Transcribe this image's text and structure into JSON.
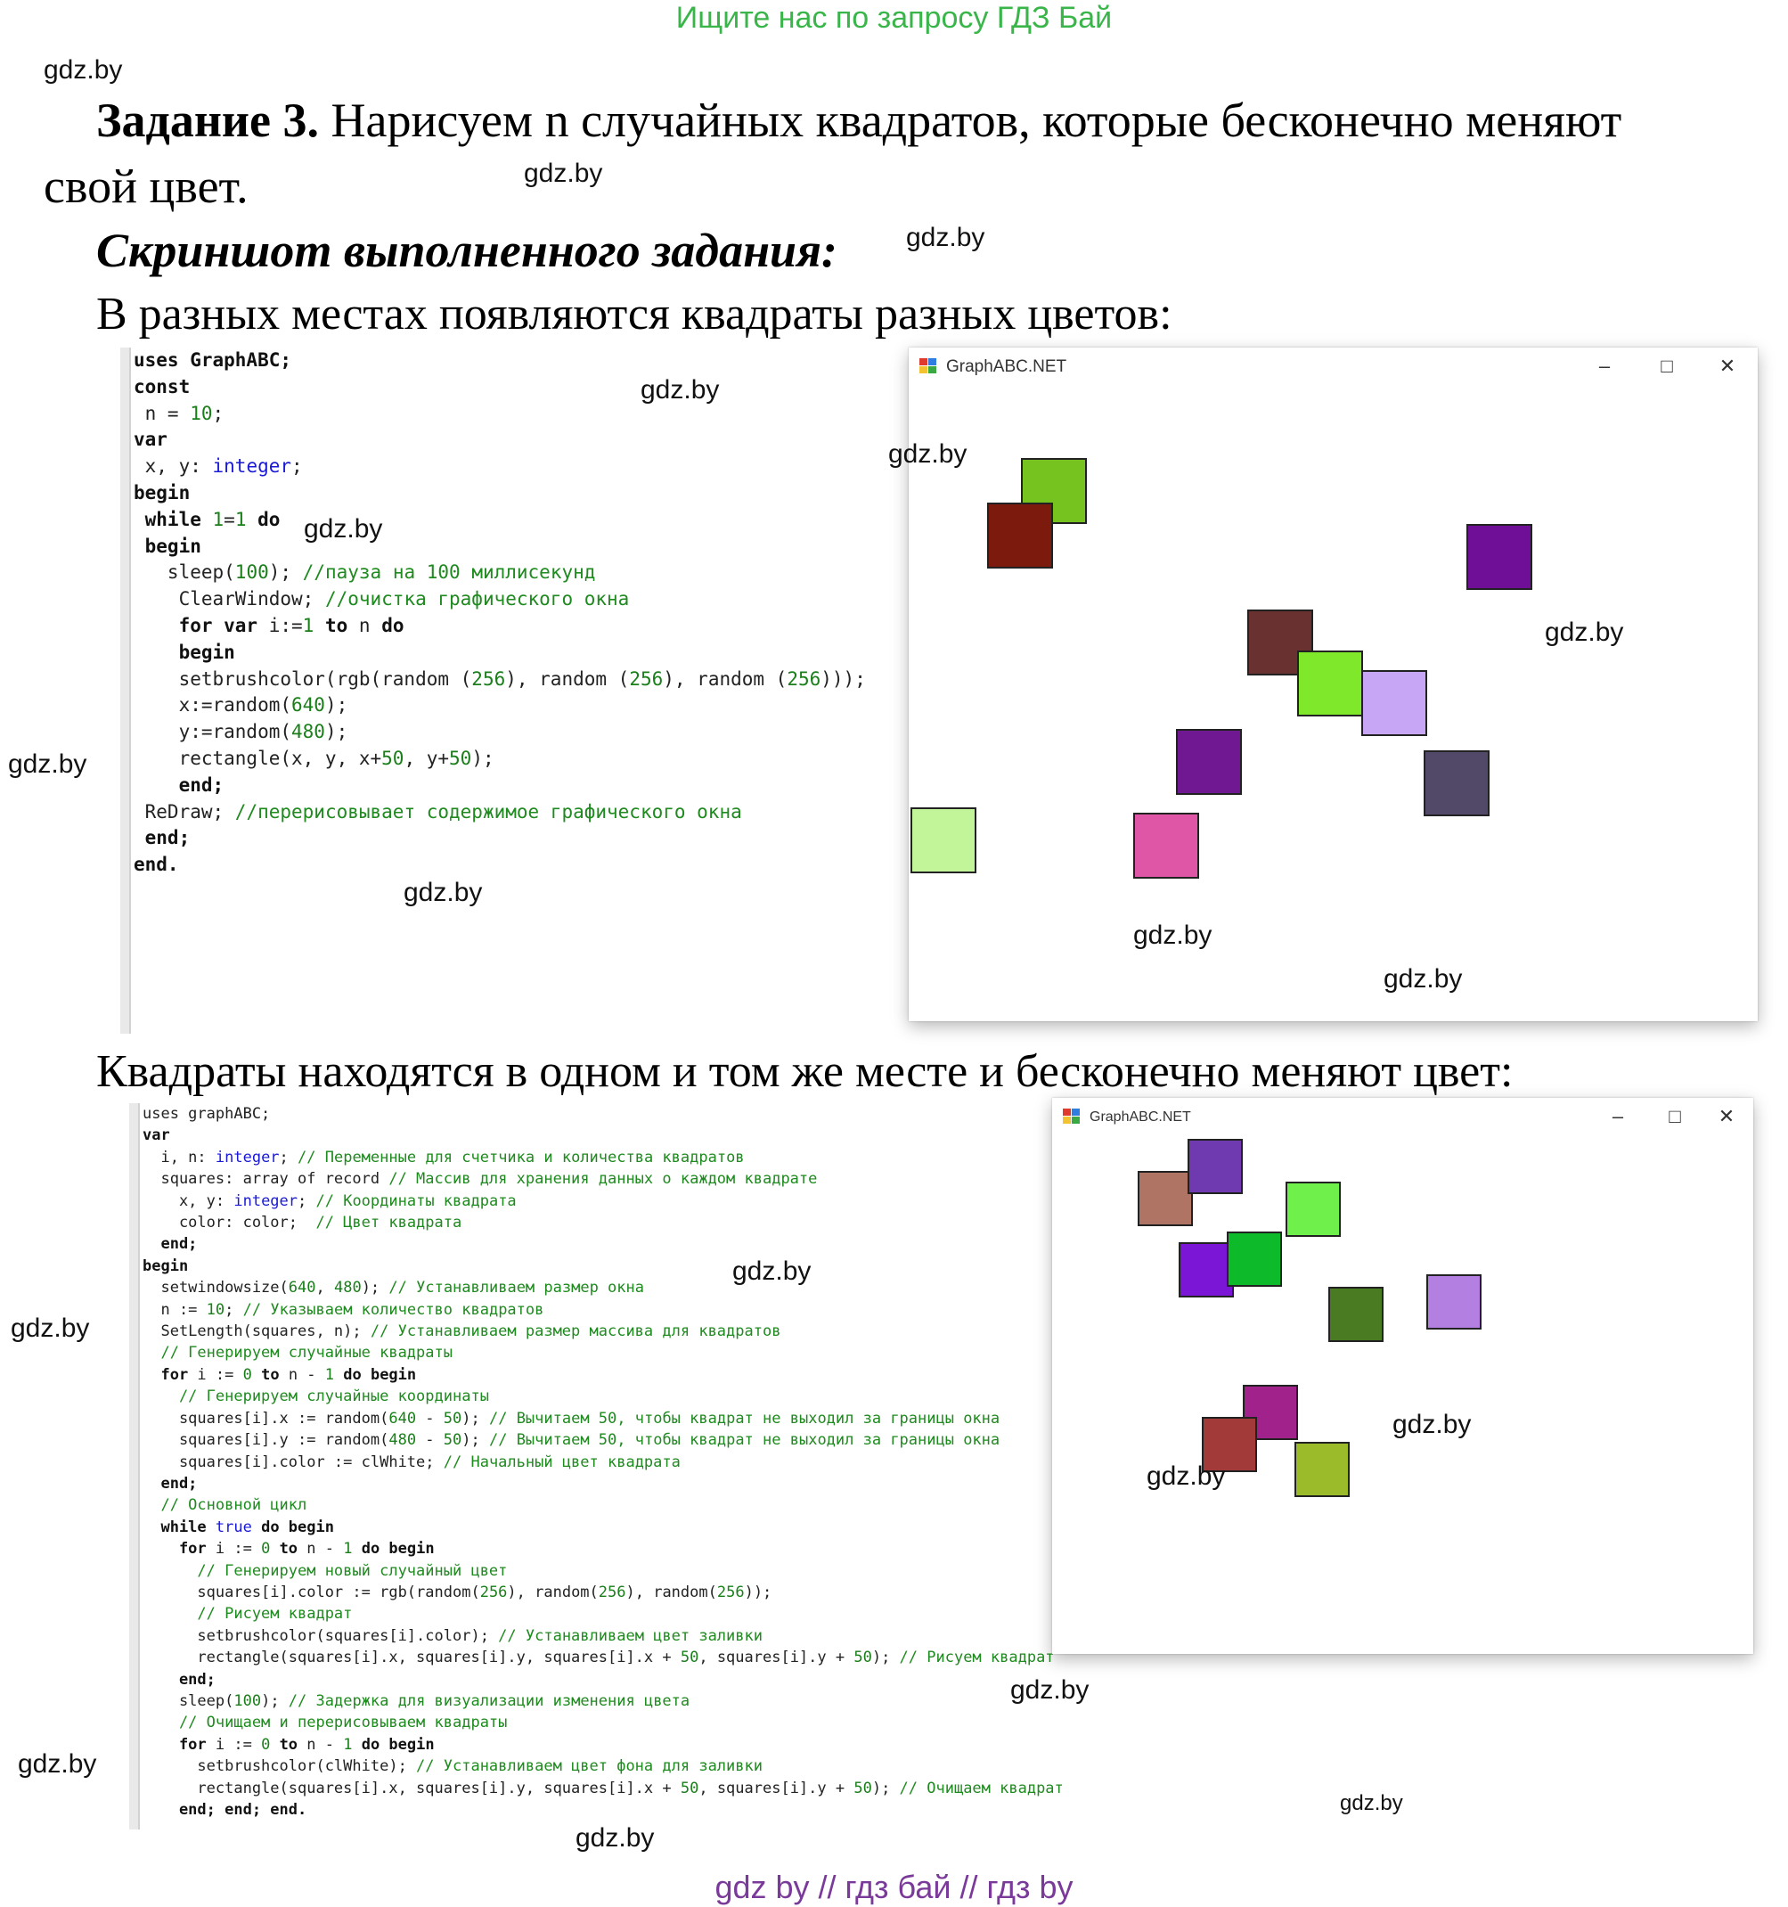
{
  "header": {
    "promo": "Ищите нас по запросу ГДЗ Бай",
    "promo_color": "#39b54a"
  },
  "watermark": "gdz.by",
  "task": {
    "label": "Задание 3.",
    "text_line1": " Нарисуем n случайных квадратов, которые бесконечно меняют",
    "text_line2": "свой цвет."
  },
  "screenshot_heading": "Скриншот выполненного задания:",
  "section1": {
    "caption": "В разных местах появляются квадраты разных цветов:",
    "code": [
      [
        [
          "uses GraphABC;",
          "kw"
        ]
      ],
      [
        [
          "const",
          "kw"
        ]
      ],
      [
        [
          " n = ",
          "id"
        ],
        [
          "10",
          "num"
        ],
        [
          ";",
          "id"
        ]
      ],
      [
        [
          "var",
          "kw"
        ]
      ],
      [
        [
          " x, y: ",
          "id"
        ],
        [
          "integer",
          "type"
        ],
        [
          ";",
          "id"
        ]
      ],
      [
        [
          "begin",
          "kw"
        ]
      ],
      [
        [
          " while ",
          "kw"
        ],
        [
          "1",
          "num"
        ],
        [
          "=",
          "id"
        ],
        [
          "1",
          "num"
        ],
        [
          " do",
          "kw"
        ]
      ],
      [
        [
          " begin",
          "kw"
        ]
      ],
      [
        [
          "   sleep(",
          "id"
        ],
        [
          "100",
          "num"
        ],
        [
          "); ",
          "id"
        ],
        [
          "//пауза на 100 миллисекунд",
          "cm"
        ]
      ],
      [
        [
          "    ClearWindow; ",
          "id"
        ],
        [
          "//очистка графического окна",
          "cm"
        ]
      ],
      [
        [
          "    for var ",
          "kw"
        ],
        [
          "i:=",
          "id"
        ],
        [
          "1",
          "num"
        ],
        [
          " to ",
          "kw"
        ],
        [
          "n",
          "id"
        ],
        [
          " do",
          "kw"
        ]
      ],
      [
        [
          "    begin",
          "kw"
        ]
      ],
      [
        [
          "    setbrushcolor(rgb(random (",
          "id"
        ],
        [
          "256",
          "num"
        ],
        [
          "), random (",
          "id"
        ],
        [
          "256",
          "num"
        ],
        [
          "), random (",
          "id"
        ],
        [
          "256",
          "num"
        ],
        [
          ")));",
          "id"
        ]
      ],
      [
        [
          "    x:=random(",
          "id"
        ],
        [
          "640",
          "num"
        ],
        [
          ");",
          "id"
        ]
      ],
      [
        [
          "    y:=random(",
          "id"
        ],
        [
          "480",
          "num"
        ],
        [
          ");",
          "id"
        ]
      ],
      [
        [
          "    rectangle(x, y, x+",
          "id"
        ],
        [
          "50",
          "num"
        ],
        [
          ", y+",
          "id"
        ],
        [
          "50",
          "num"
        ],
        [
          ");",
          "id"
        ]
      ],
      [
        [
          "    end;",
          "kw"
        ]
      ],
      [
        [
          " ReDraw; ",
          "id"
        ],
        [
          "//перерисовывает содержимое графического окна",
          "cm"
        ]
      ],
      [
        [
          " end;",
          "kw"
        ]
      ],
      [
        [
          "end.",
          "kw"
        ]
      ]
    ],
    "window": {
      "title": "GraphABC.NET",
      "squares": [
        {
          "color": "#76c21f"
        },
        {
          "color": "#7c1a0d"
        },
        {
          "color": "#6f0f97"
        },
        {
          "color": "#6a3131"
        },
        {
          "color": "#7fe82b"
        },
        {
          "color": "#c7a6f6"
        },
        {
          "color": "#6f1892"
        },
        {
          "color": "#524867"
        },
        {
          "color": "#c2f49a"
        },
        {
          "color": "#e056a7"
        }
      ]
    }
  },
  "section2": {
    "caption": "Квадраты находятся в одном и том же месте и бесконечно меняют цвет:",
    "code": [
      [
        [
          "uses graphABC;",
          "id"
        ]
      ],
      [
        [
          "var",
          "kw"
        ]
      ],
      [
        [
          "  i, n: ",
          "id"
        ],
        [
          "integer",
          "type"
        ],
        [
          "; ",
          "id"
        ],
        [
          "// Переменные для счетчика и количества квадратов",
          "cm"
        ]
      ],
      [
        [
          "  squares: array of record ",
          "id"
        ],
        [
          "// Массив для хранения данных о каждом квадрате",
          "cm"
        ]
      ],
      [
        [
          "    x, y: ",
          "id"
        ],
        [
          "integer",
          "type"
        ],
        [
          "; ",
          "id"
        ],
        [
          "// Координаты квадрата",
          "cm"
        ]
      ],
      [
        [
          "    color: color;  ",
          "id"
        ],
        [
          "// Цвет квадрата",
          "cm"
        ]
      ],
      [
        [
          "  end;",
          "kw"
        ]
      ],
      [
        [
          "begin",
          "kw"
        ]
      ],
      [
        [
          "  setwindowsize(",
          "id"
        ],
        [
          "640",
          "num"
        ],
        [
          ", ",
          "id"
        ],
        [
          "480",
          "num"
        ],
        [
          "); ",
          "id"
        ],
        [
          "// Устанавливаем размер окна",
          "cm"
        ]
      ],
      [
        [
          "  n := ",
          "id"
        ],
        [
          "10",
          "num"
        ],
        [
          "; ",
          "id"
        ],
        [
          "// Указываем количество квадратов",
          "cm"
        ]
      ],
      [
        [
          "  SetLength(squares, n); ",
          "id"
        ],
        [
          "// Устанавливаем размер массива для квадратов",
          "cm"
        ]
      ],
      [
        [
          "  // Генерируем случайные квадраты",
          "cm"
        ]
      ],
      [
        [
          "  for ",
          "kw"
        ],
        [
          "i := ",
          "id"
        ],
        [
          "0",
          "num"
        ],
        [
          " to ",
          "kw"
        ],
        [
          "n - ",
          "id"
        ],
        [
          "1",
          "num"
        ],
        [
          " do begin",
          "kw"
        ]
      ],
      [
        [
          "    // Генерируем случайные координаты",
          "cm"
        ]
      ],
      [
        [
          "    squares[i].x := random(",
          "id"
        ],
        [
          "640",
          "num"
        ],
        [
          " - ",
          "id"
        ],
        [
          "50",
          "num"
        ],
        [
          "); ",
          "id"
        ],
        [
          "// Вычитаем 50, чтобы квадрат не выходил за границы окна",
          "cm"
        ]
      ],
      [
        [
          "    squares[i].y := random(",
          "id"
        ],
        [
          "480",
          "num"
        ],
        [
          " - ",
          "id"
        ],
        [
          "50",
          "num"
        ],
        [
          "); ",
          "id"
        ],
        [
          "// Вычитаем 50, чтобы квадрат не выходил за границы окна",
          "cm"
        ]
      ],
      [
        [
          "    squares[i].color := clWhite; ",
          "id"
        ],
        [
          "// Начальный цвет квадрата",
          "cm"
        ]
      ],
      [
        [
          "  end;",
          "kw"
        ]
      ],
      [
        [
          "  // Основной цикл",
          "cm"
        ]
      ],
      [
        [
          "  while ",
          "kw"
        ],
        [
          "true",
          "type"
        ],
        [
          " do begin",
          "kw"
        ]
      ],
      [
        [
          "    for ",
          "kw"
        ],
        [
          "i := ",
          "id"
        ],
        [
          "0",
          "num"
        ],
        [
          " to ",
          "kw"
        ],
        [
          "n - ",
          "id"
        ],
        [
          "1",
          "num"
        ],
        [
          " do begin",
          "kw"
        ]
      ],
      [
        [
          "      // Генерируем новый случайный цвет",
          "cm"
        ]
      ],
      [
        [
          "      squares[i].color := rgb(random(",
          "id"
        ],
        [
          "256",
          "num"
        ],
        [
          "), random(",
          "id"
        ],
        [
          "256",
          "num"
        ],
        [
          "), random(",
          "id"
        ],
        [
          "256",
          "num"
        ],
        [
          "));",
          "id"
        ]
      ],
      [
        [
          "      // Рисуем квадрат",
          "cm"
        ]
      ],
      [
        [
          "      setbrushcolor(squares[i].color); ",
          "id"
        ],
        [
          "// Устанавливаем цвет заливки",
          "cm"
        ]
      ],
      [
        [
          "      rectangle(squares[i].x, squares[i].y, squares[i].x + ",
          "id"
        ],
        [
          "50",
          "num"
        ],
        [
          ", squares[i].y + ",
          "id"
        ],
        [
          "50",
          "num"
        ],
        [
          "); ",
          "id"
        ],
        [
          "// Рисуем квадрат",
          "cm"
        ]
      ],
      [
        [
          "    end;",
          "kw"
        ]
      ],
      [
        [
          "    sleep(",
          "id"
        ],
        [
          "100",
          "num"
        ],
        [
          "); ",
          "id"
        ],
        [
          "// Задержка для визуализации изменения цвета",
          "cm"
        ]
      ],
      [
        [
          "    // Очищаем и перерисовываем квадраты",
          "cm"
        ]
      ],
      [
        [
          "    for ",
          "kw"
        ],
        [
          "i := ",
          "id"
        ],
        [
          "0",
          "num"
        ],
        [
          " to ",
          "kw"
        ],
        [
          "n - ",
          "id"
        ],
        [
          "1",
          "num"
        ],
        [
          " do begin",
          "kw"
        ]
      ],
      [
        [
          "      setbrushcolor(clWhite); ",
          "id"
        ],
        [
          "// Устанавливаем цвет фона для заливки",
          "cm"
        ]
      ],
      [
        [
          "      rectangle(squares[i].x, squares[i].y, squares[i].x + ",
          "id"
        ],
        [
          "50",
          "num"
        ],
        [
          ", squares[i].y + ",
          "id"
        ],
        [
          "50",
          "num"
        ],
        [
          "); ",
          "id"
        ],
        [
          "// Очищаем квадрат",
          "cm"
        ]
      ],
      [
        [
          "    end; end; end.",
          "kw"
        ]
      ]
    ],
    "window": {
      "title": "GraphABC.NET",
      "squares": [
        {
          "color": "#b07464"
        },
        {
          "color": "#6f39b0"
        },
        {
          "color": "#6ff04a"
        },
        {
          "color": "#7c16d6"
        },
        {
          "color": "#0dbb2a"
        },
        {
          "color": "#4a7a22"
        },
        {
          "color": "#b380e2"
        },
        {
          "color": "#a0228a"
        },
        {
          "color": "#a33a3a"
        },
        {
          "color": "#9bbb2b"
        }
      ]
    }
  },
  "window_controls": {
    "minimize": "–",
    "maximize": "□",
    "close": "✕"
  },
  "footer": "gdz by  //  гдз бай  //  гдз by",
  "code_colors": {
    "kw": "#111111",
    "id": "#222222",
    "num": "#1a7f1a",
    "type": "#1a1ad6",
    "cm": "#1f8a1f"
  }
}
